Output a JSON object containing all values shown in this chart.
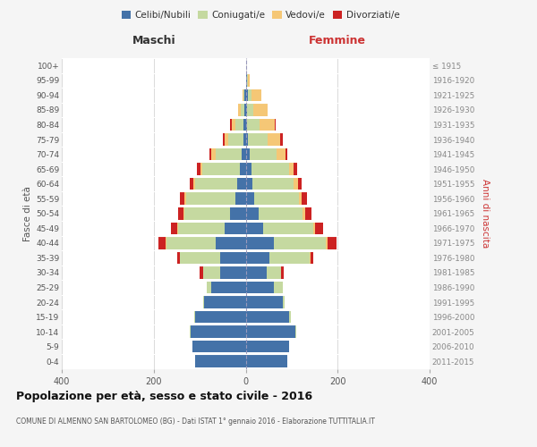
{
  "age_groups": [
    "0-4",
    "5-9",
    "10-14",
    "15-19",
    "20-24",
    "25-29",
    "30-34",
    "35-39",
    "40-44",
    "45-49",
    "50-54",
    "55-59",
    "60-64",
    "65-69",
    "70-74",
    "75-79",
    "80-84",
    "85-89",
    "90-94",
    "95-99",
    "100+"
  ],
  "birth_years": [
    "2011-2015",
    "2006-2010",
    "2001-2005",
    "1996-2000",
    "1991-1995",
    "1986-1990",
    "1981-1985",
    "1976-1980",
    "1971-1975",
    "1966-1970",
    "1961-1965",
    "1956-1960",
    "1951-1955",
    "1946-1950",
    "1941-1945",
    "1936-1940",
    "1931-1935",
    "1926-1930",
    "1921-1925",
    "1916-1920",
    "≤ 1915"
  ],
  "maschi": {
    "celibi": [
      110,
      115,
      120,
      110,
      90,
      75,
      55,
      55,
      65,
      45,
      35,
      22,
      18,
      12,
      8,
      5,
      5,
      3,
      2,
      0,
      0
    ],
    "coniugati": [
      0,
      0,
      2,
      2,
      3,
      10,
      38,
      88,
      108,
      102,
      98,
      108,
      92,
      82,
      58,
      32,
      18,
      8,
      3,
      0,
      0
    ],
    "vedovi": [
      0,
      0,
      0,
      0,
      0,
      0,
      0,
      0,
      2,
      2,
      2,
      3,
      3,
      5,
      8,
      8,
      8,
      5,
      2,
      0,
      0
    ],
    "divorziati": [
      0,
      0,
      0,
      0,
      0,
      0,
      8,
      5,
      14,
      14,
      12,
      10,
      8,
      8,
      5,
      5,
      3,
      0,
      0,
      0,
      0
    ]
  },
  "femmine": {
    "nubili": [
      90,
      95,
      108,
      95,
      80,
      62,
      45,
      52,
      62,
      38,
      28,
      18,
      15,
      12,
      8,
      5,
      3,
      3,
      5,
      2,
      0
    ],
    "coniugate": [
      0,
      0,
      2,
      3,
      5,
      18,
      32,
      88,
      112,
      108,
      96,
      98,
      90,
      82,
      60,
      42,
      28,
      14,
      8,
      2,
      0
    ],
    "vedove": [
      0,
      0,
      0,
      0,
      0,
      0,
      0,
      2,
      5,
      5,
      5,
      5,
      8,
      10,
      18,
      28,
      32,
      30,
      22,
      5,
      0
    ],
    "divorziate": [
      0,
      0,
      0,
      0,
      0,
      0,
      5,
      5,
      18,
      18,
      15,
      12,
      8,
      8,
      5,
      5,
      3,
      0,
      0,
      0,
      0
    ]
  },
  "colors": {
    "celibi": "#4472a8",
    "coniugati": "#c5d9a0",
    "vedovi": "#f5c776",
    "divorziati": "#cc2222"
  },
  "title": "Popolazione per età, sesso e stato civile - 2016",
  "subtitle": "COMUNE DI ALMENNO SAN BARTOLOMEO (BG) - Dati ISTAT 1° gennaio 2016 - Elaborazione TUTTITALIA.IT",
  "xlabel_left": "Maschi",
  "xlabel_right": "Femmine",
  "ylabel_left": "Fasce di età",
  "ylabel_right": "Anni di nascita",
  "xlim": 400,
  "bg_color": "#f5f5f5",
  "plot_bg": "#ffffff"
}
